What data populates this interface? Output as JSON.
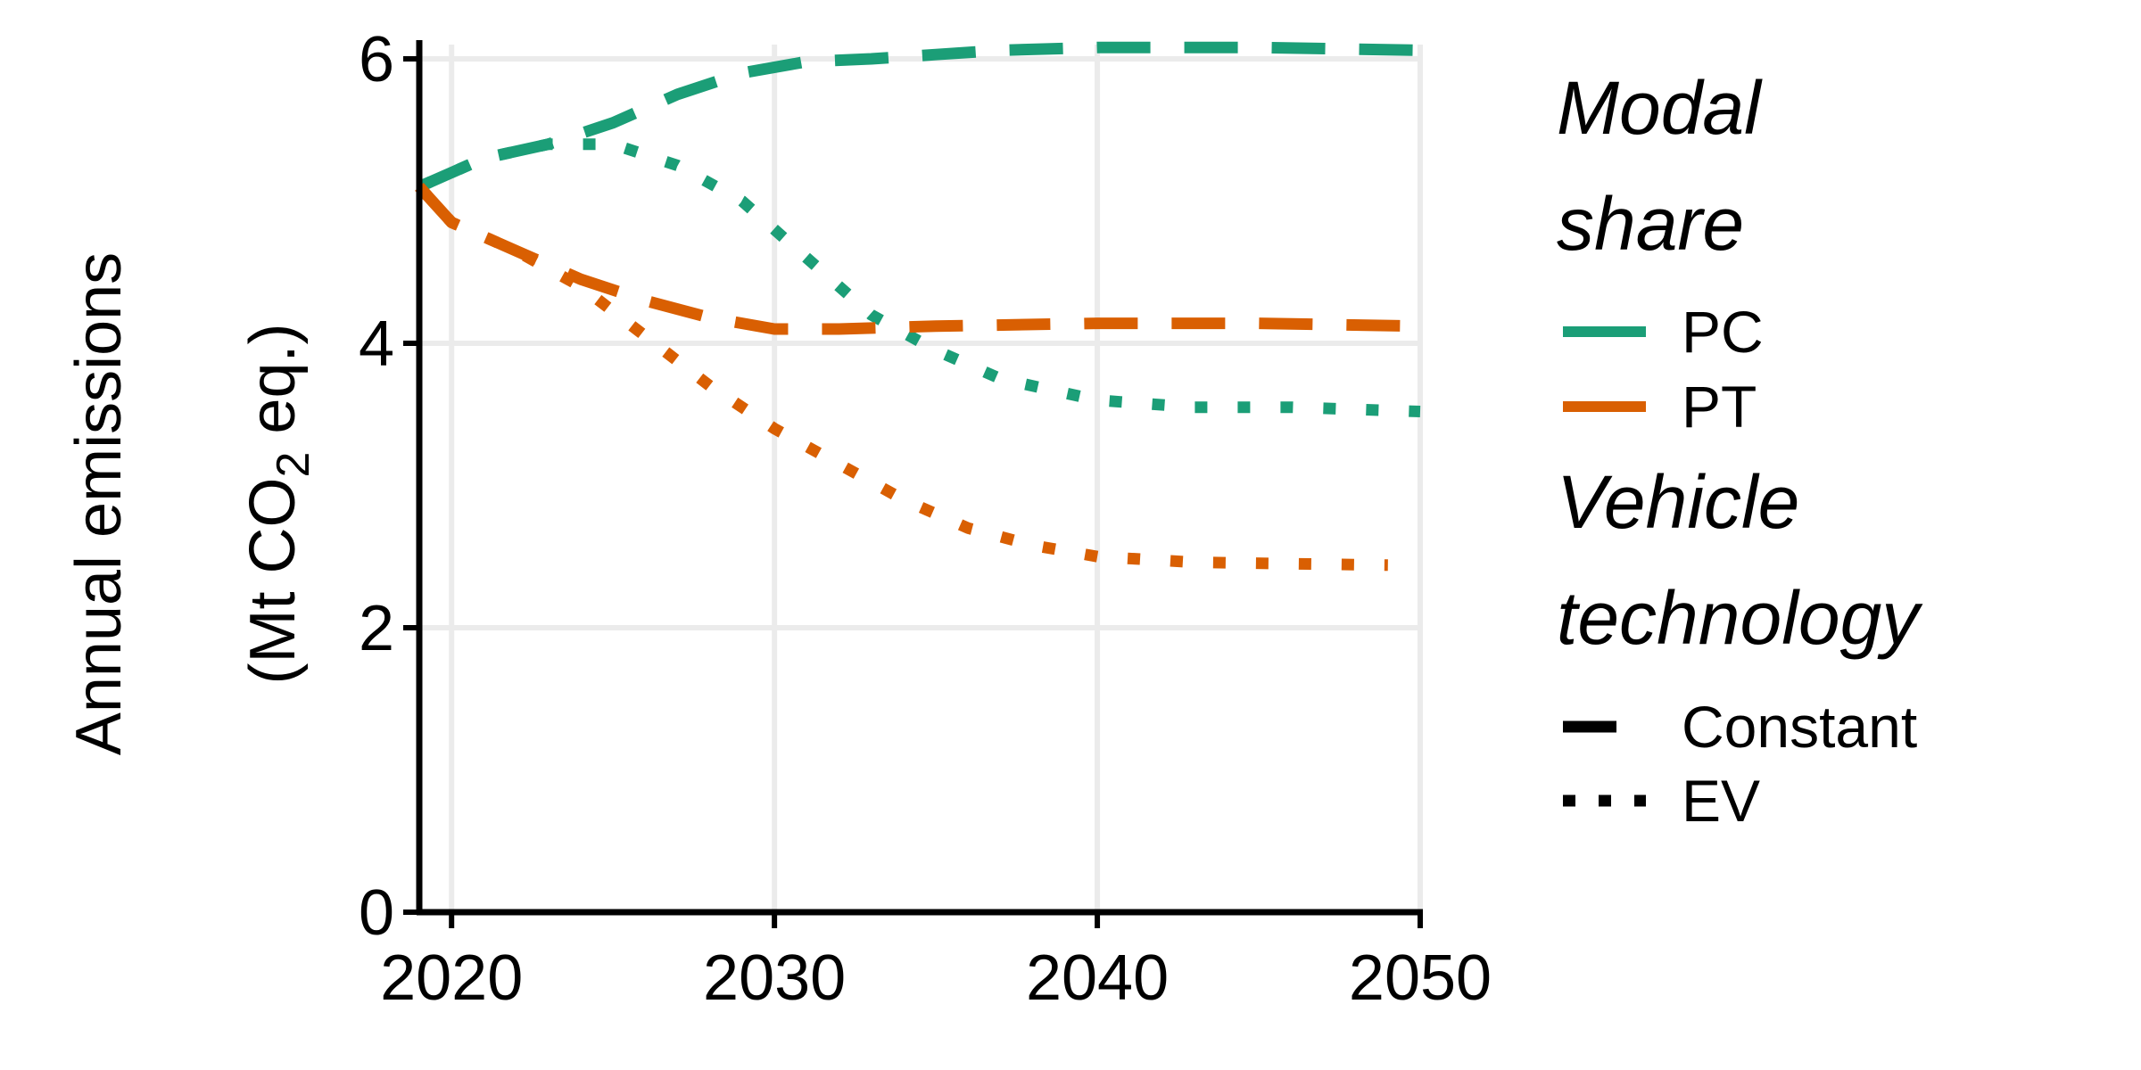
{
  "chart_data": {
    "type": "line",
    "xlabel": "",
    "ylabel": {
      "line1": "Annual emissions",
      "line2_prefix": "(Mt CO",
      "line2_sub": "2",
      "line2_suffix": " eq.)"
    },
    "xlim": [
      2019,
      2050
    ],
    "ylim": [
      0,
      6.1
    ],
    "x_ticks": [
      "2020",
      "2030",
      "2040",
      "2050"
    ],
    "y_ticks": [
      "0",
      "2",
      "4",
      "6"
    ],
    "grid": true,
    "legend_position": "right",
    "legend": {
      "color_title_line1": "Modal",
      "color_title_line2": "share",
      "color_entries": [
        {
          "label": "PC",
          "color": "#1b9e77"
        },
        {
          "label": "PT",
          "color": "#d95f02"
        }
      ],
      "linetype_title_line1": "Vehicle",
      "linetype_title_line2": "technology",
      "linetype_entries": [
        {
          "label": "Constant",
          "linetype": "dashed"
        },
        {
          "label": "EV",
          "linetype": "dotted"
        }
      ]
    },
    "series": [
      {
        "modal_share": "PC",
        "technology": "Constant",
        "color": "#1b9e77",
        "linetype": "dashed",
        "x": [
          2019,
          2021,
          2023,
          2025,
          2027,
          2029,
          2031,
          2033,
          2035,
          2037,
          2040,
          2045,
          2050
        ],
        "y": [
          5.1,
          5.3,
          5.4,
          5.55,
          5.75,
          5.9,
          5.98,
          6.0,
          6.03,
          6.06,
          6.08,
          6.08,
          6.06
        ]
      },
      {
        "modal_share": "PC",
        "technology": "EV",
        "color": "#1b9e77",
        "linetype": "dotted",
        "x": [
          2019,
          2021,
          2023,
          2025,
          2027,
          2029,
          2031,
          2033,
          2035,
          2037,
          2040,
          2043,
          2046,
          2050
        ],
        "y": [
          5.1,
          5.3,
          5.4,
          5.4,
          5.25,
          5.0,
          4.6,
          4.2,
          3.95,
          3.75,
          3.6,
          3.55,
          3.55,
          3.52
        ]
      },
      {
        "modal_share": "PT",
        "technology": "Constant",
        "color": "#d95f02",
        "linetype": "dashed",
        "x": [
          2019,
          2020,
          2022,
          2024,
          2026,
          2028,
          2030,
          2032,
          2035,
          2040,
          2045,
          2050
        ],
        "y": [
          5.1,
          4.85,
          4.65,
          4.45,
          4.3,
          4.18,
          4.1,
          4.1,
          4.12,
          4.14,
          4.14,
          4.12
        ]
      },
      {
        "modal_share": "PT",
        "technology": "EV",
        "color": "#d95f02",
        "linetype": "dotted",
        "x": [
          2019,
          2020,
          2022,
          2024,
          2026,
          2028,
          2030,
          2032,
          2034,
          2036,
          2038,
          2040,
          2043,
          2046,
          2049
        ],
        "y": [
          5.1,
          4.85,
          4.65,
          4.4,
          4.05,
          3.7,
          3.4,
          3.15,
          2.9,
          2.7,
          2.58,
          2.5,
          2.46,
          2.45,
          2.44
        ]
      }
    ]
  }
}
